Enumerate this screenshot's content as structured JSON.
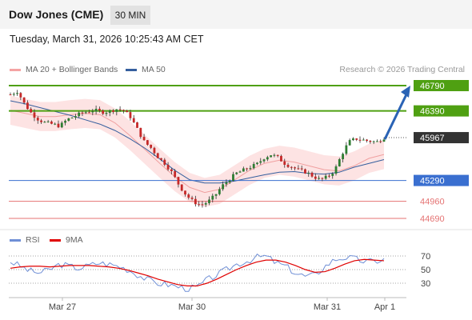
{
  "header": {
    "title": "Dow Jones (CME)",
    "timeframe": "30 MIN"
  },
  "timestamp": "Tuesday, March 31, 2026 10:25:43 AM CET",
  "legend": {
    "items": [
      {
        "label": "MA 20 + Bollinger Bands",
        "color": "#f4a3a3"
      },
      {
        "label": "MA 50",
        "color": "#355f9e"
      }
    ],
    "copyright": "Research © 2026 Trading Central"
  },
  "rsi_legend": {
    "items": [
      {
        "label": "RSI",
        "color": "#6f8fd6"
      },
      {
        "label": "9MA",
        "color": "#e00000"
      }
    ]
  },
  "colors": {
    "resistance": "#4fa012",
    "pivot": "#3a6fd0",
    "support": "#e57373",
    "last_price": "#333333",
    "arrow": "#2a63b5",
    "candle_up": "#2e7d32",
    "candle_down": "#c62828"
  },
  "chart_data": [
    {
      "type": "candlestick",
      "title": "Dow Jones (CME) 30 MIN",
      "ylim": [
        44400,
        46950
      ],
      "x_ticks": [
        "Mar 27",
        "Mar 30",
        "Mar 31",
        "Apr 1"
      ],
      "levels": [
        {
          "value": 46790,
          "label": "46790",
          "kind": "resistance"
        },
        {
          "value": 46390,
          "label": "46390",
          "kind": "resistance"
        },
        {
          "value": 45967,
          "label": "45967",
          "kind": "last"
        },
        {
          "value": 45290,
          "label": "45290",
          "kind": "pivot"
        },
        {
          "value": 44960,
          "label": "44960",
          "kind": "support"
        },
        {
          "value": 44690,
          "label": "44690",
          "kind": "support"
        }
      ],
      "price_path": [
        46650,
        46700,
        46500,
        46350,
        46250,
        46200,
        46180,
        46150,
        46250,
        46300,
        46350,
        46380,
        46400,
        46370,
        46380,
        46420,
        46400,
        46300,
        46100,
        45900,
        45800,
        45650,
        45550,
        45400,
        45200,
        45050,
        44950,
        44900,
        44950,
        45050,
        45200,
        45300,
        45400,
        45450,
        45500,
        45550,
        45650,
        45700,
        45650,
        45550,
        45500,
        45450,
        45420,
        45350,
        45300,
        45350,
        45450,
        45700,
        45900,
        45950,
        45930,
        45910,
        45900,
        45967
      ],
      "ma50_path": [
        46550,
        46500,
        46440,
        46380,
        46320,
        46250,
        46180,
        46080,
        45950,
        45800,
        45630,
        45450,
        45300,
        45250,
        45250,
        45280,
        45330,
        45380,
        45420,
        45430,
        45400,
        45390,
        45420,
        45500,
        45560,
        45620
      ],
      "ma20_path": [
        46400,
        46350,
        46300,
        46300,
        46330,
        46350,
        46330,
        46200,
        46000,
        45780,
        45560,
        45350,
        45180,
        45100,
        45150,
        45300,
        45450,
        45560,
        45610,
        45580,
        45520,
        45460,
        45440,
        45520,
        45640,
        45700
      ],
      "projection": {
        "from": 45967,
        "to": 46790
      }
    },
    {
      "type": "line",
      "title": "RSI",
      "ylim": [
        20,
        75
      ],
      "y_ticks": [
        70,
        50,
        30
      ],
      "series": [
        {
          "name": "RSI",
          "values": [
            62,
            55,
            48,
            45,
            50,
            58,
            55,
            52,
            56,
            60,
            58,
            55,
            50,
            42,
            35,
            30,
            28,
            25,
            22,
            24,
            35,
            42,
            50,
            58,
            62,
            68,
            70,
            60,
            55,
            45,
            40,
            42,
            55,
            65,
            68,
            66,
            62,
            62,
            65
          ]
        },
        {
          "name": "9MA",
          "values": [
            52,
            54,
            55,
            55,
            54,
            55,
            56,
            56,
            56,
            55,
            54,
            52,
            49,
            45,
            41,
            36,
            32,
            28,
            26,
            26,
            30,
            36,
            43,
            50,
            56,
            61,
            64,
            64,
            61,
            56,
            50,
            46,
            47,
            52,
            58,
            63,
            65,
            64,
            63
          ]
        }
      ]
    }
  ]
}
